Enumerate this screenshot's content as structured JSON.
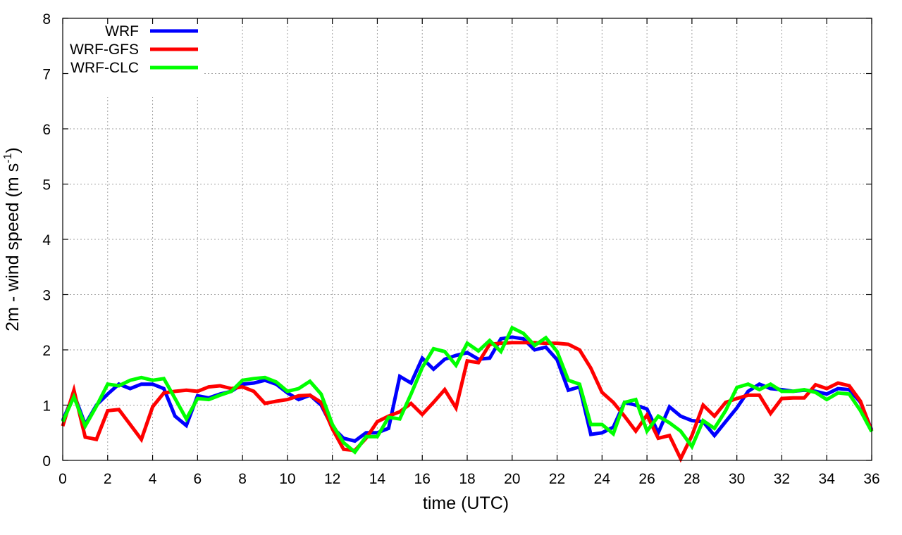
{
  "chart_data": {
    "type": "line",
    "xlabel": "time (UTC)",
    "ylabel": "2m - wind speed  (m s",
    "ylabel_sup": "-1",
    "ylabel_end": ")",
    "xlim": [
      0,
      36
    ],
    "ylim": [
      0,
      8
    ],
    "xticks": [
      "0",
      "2",
      "4",
      "6",
      "8",
      "10",
      "12",
      "14",
      "16",
      "18",
      "20",
      "22",
      "24",
      "26",
      "28",
      "30",
      "32",
      "34",
      "36"
    ],
    "yticks": [
      "0",
      "1",
      "2",
      "3",
      "4",
      "5",
      "6",
      "7",
      "8"
    ],
    "grid": true,
    "legend_position": "top-left",
    "x": [
      0,
      0.5,
      1,
      1.5,
      2,
      2.5,
      3,
      3.5,
      4,
      4.5,
      5,
      5.5,
      6,
      6.5,
      7,
      7.5,
      8,
      8.5,
      9,
      9.5,
      10,
      10.5,
      11,
      11.5,
      12,
      12.5,
      13,
      13.5,
      14,
      14.5,
      15,
      15.5,
      16,
      16.5,
      17,
      17.5,
      18,
      18.5,
      19,
      19.5,
      20,
      20.5,
      21,
      21.5,
      22,
      22.5,
      23,
      23.5,
      24,
      24.5,
      25,
      25.5,
      26,
      26.5,
      27,
      27.5,
      28,
      28.5,
      29,
      29.5,
      30,
      30.5,
      31,
      31.5,
      32,
      32.5,
      33,
      33.5,
      34,
      34.5,
      35,
      35.5,
      36
    ],
    "series": [
      {
        "name": "WRF",
        "color": "#0000ff",
        "values": [
          0.72,
          1.2,
          0.65,
          1.0,
          1.2,
          1.38,
          1.3,
          1.38,
          1.38,
          1.3,
          0.8,
          0.63,
          1.17,
          1.13,
          1.2,
          1.25,
          1.38,
          1.4,
          1.45,
          1.38,
          1.22,
          1.1,
          1.18,
          1.0,
          0.6,
          0.4,
          0.35,
          0.5,
          0.5,
          0.58,
          1.52,
          1.4,
          1.85,
          1.65,
          1.83,
          1.9,
          1.95,
          1.83,
          1.85,
          2.2,
          2.23,
          2.2,
          2.0,
          2.05,
          1.82,
          1.27,
          1.33,
          0.47,
          0.5,
          0.6,
          1.05,
          1.0,
          0.93,
          0.5,
          0.97,
          0.8,
          0.72,
          0.7,
          0.45,
          0.7,
          0.95,
          1.25,
          1.38,
          1.3,
          1.28,
          1.25,
          1.27,
          1.25,
          1.2,
          1.3,
          1.28,
          1.05,
          0.55
        ]
      },
      {
        "name": "WRF-GFS",
        "color": "#ff0000",
        "values": [
          0.62,
          1.27,
          0.42,
          0.38,
          0.9,
          0.92,
          0.65,
          0.38,
          0.97,
          1.22,
          1.25,
          1.27,
          1.25,
          1.33,
          1.35,
          1.3,
          1.33,
          1.25,
          1.03,
          1.07,
          1.1,
          1.17,
          1.18,
          1.05,
          0.57,
          0.2,
          0.18,
          0.4,
          0.7,
          0.8,
          0.88,
          1.03,
          0.83,
          1.05,
          1.28,
          0.95,
          1.8,
          1.77,
          2.1,
          2.12,
          2.13,
          2.13,
          2.13,
          2.12,
          2.12,
          2.1,
          2.0,
          1.67,
          1.23,
          1.05,
          0.8,
          0.53,
          0.82,
          0.4,
          0.45,
          0.03,
          0.45,
          1.0,
          0.8,
          1.05,
          1.12,
          1.18,
          1.18,
          0.85,
          1.12,
          1.13,
          1.13,
          1.37,
          1.3,
          1.4,
          1.35,
          1.07,
          0.53
        ]
      },
      {
        "name": "WRF-CLC",
        "color": "#00ff00",
        "values": [
          0.7,
          1.15,
          0.62,
          0.98,
          1.38,
          1.35,
          1.45,
          1.5,
          1.45,
          1.48,
          1.12,
          0.75,
          1.12,
          1.1,
          1.18,
          1.25,
          1.45,
          1.48,
          1.5,
          1.42,
          1.25,
          1.3,
          1.43,
          1.2,
          0.65,
          0.32,
          0.15,
          0.43,
          0.43,
          0.78,
          0.75,
          1.2,
          1.68,
          2.02,
          1.97,
          1.72,
          2.12,
          1.98,
          2.17,
          1.97,
          2.4,
          2.3,
          2.08,
          2.22,
          1.97,
          1.45,
          1.38,
          0.65,
          0.65,
          0.48,
          1.05,
          1.1,
          0.53,
          0.8,
          0.68,
          0.53,
          0.25,
          0.72,
          0.58,
          0.9,
          1.32,
          1.38,
          1.28,
          1.38,
          1.25,
          1.25,
          1.28,
          1.23,
          1.1,
          1.22,
          1.2,
          0.9,
          0.52
        ]
      }
    ]
  }
}
